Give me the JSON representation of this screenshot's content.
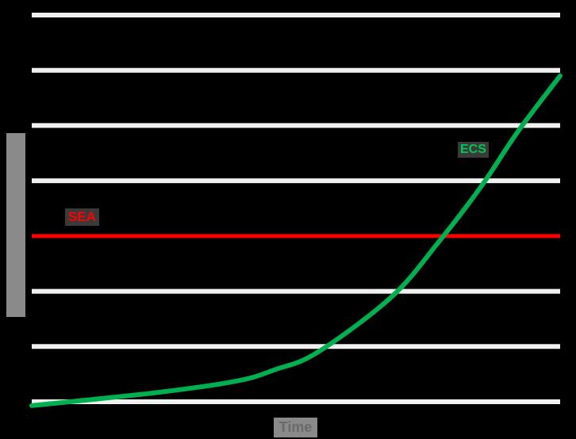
{
  "chart_data": {
    "type": "line",
    "title": "",
    "xlabel": "Time",
    "ylabel": "",
    "grid": true,
    "legend_position": "inline",
    "xlim": [
      0,
      100
    ],
    "ylim": [
      0,
      7
    ],
    "series": [
      {
        "name": "ECS",
        "color": "#00b050",
        "x": [
          0,
          24,
          39,
          46,
          54,
          68,
          77,
          85,
          92,
          100
        ],
        "values": [
          -0.07,
          0.17,
          0.38,
          0.58,
          0.89,
          1.89,
          2.89,
          3.89,
          4.89,
          5.9
        ]
      },
      {
        "name": "SEA",
        "color": "#ff0000",
        "x": [
          0,
          100
        ],
        "values": [
          3.0,
          3.0
        ]
      }
    ],
    "gridlines_y": [
      0,
      1,
      2,
      3,
      4,
      5,
      6,
      7
    ]
  },
  "labels": {
    "x_axis": "Time",
    "y_axis": "",
    "reference_line": "SEA",
    "series_label": "ECS"
  },
  "colors": {
    "background": "#000000",
    "gridline": "#f0f0f0",
    "reference": "#ff0000",
    "series": "#00b050"
  }
}
